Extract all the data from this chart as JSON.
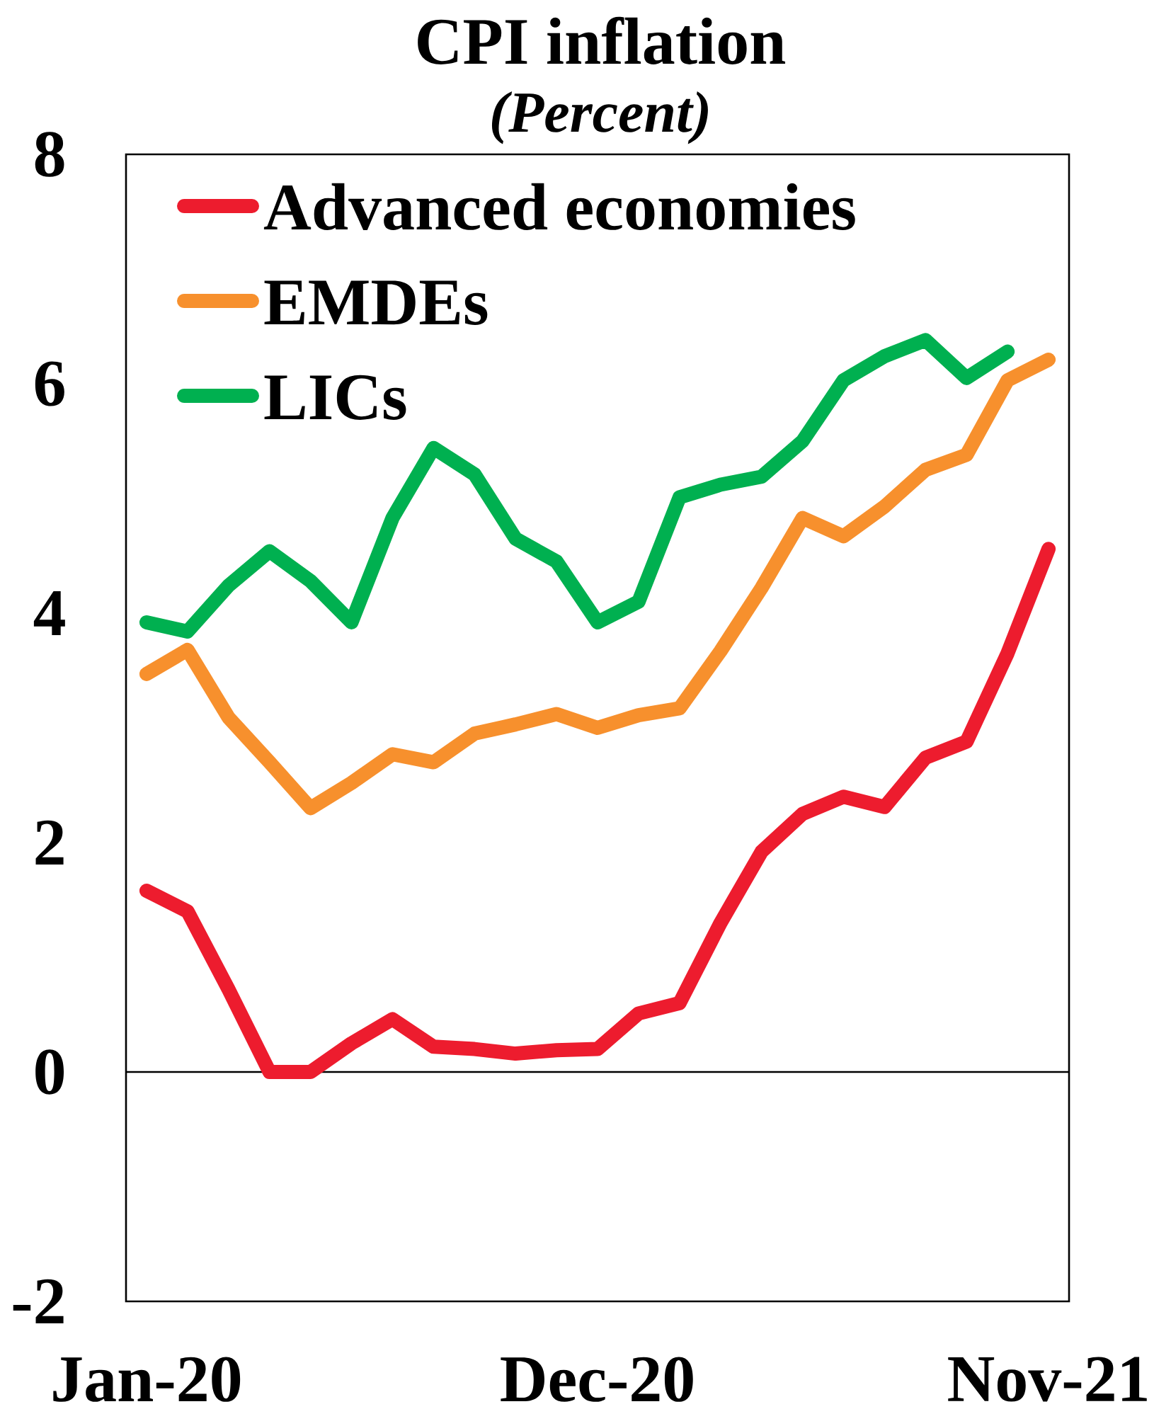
{
  "chart_data": {
    "type": "line",
    "title": "CPI inflation",
    "subtitle": "(Percent)",
    "categories": [
      "Jan-20",
      null,
      null,
      null,
      null,
      null,
      null,
      null,
      null,
      null,
      null,
      "Dec-20",
      null,
      null,
      null,
      null,
      null,
      null,
      null,
      null,
      null,
      null,
      "Nov-21"
    ],
    "series": [
      {
        "name": "Advanced economies",
        "color": "#ed1c2e",
        "values": [
          1.58,
          1.4,
          0.72,
          0.0,
          0.0,
          0.25,
          0.46,
          0.22,
          0.2,
          0.16,
          0.19,
          0.2,
          0.51,
          0.6,
          1.3,
          1.92,
          2.25,
          2.4,
          2.31,
          2.74,
          2.88,
          3.65,
          4.56
        ]
      },
      {
        "name": "EMDEs",
        "color": "#f7902d",
        "values": [
          3.47,
          3.68,
          3.09,
          2.7,
          2.3,
          2.52,
          2.77,
          2.7,
          2.95,
          3.03,
          3.12,
          3.0,
          3.11,
          3.17,
          3.67,
          4.22,
          4.83,
          4.67,
          4.93,
          5.25,
          5.38,
          6.03,
          6.21
        ]
      },
      {
        "name": "LICs",
        "color": "#00b050",
        "values": [
          3.92,
          3.84,
          4.24,
          4.54,
          4.28,
          3.92,
          4.83,
          5.44,
          5.21,
          4.65,
          4.45,
          3.92,
          4.1,
          5.01,
          5.12,
          5.19,
          5.5,
          6.03,
          6.24,
          6.38,
          6.05,
          6.28,
          null
        ]
      }
    ],
    "ylim": [
      -2,
      8
    ],
    "yticks": [
      -2,
      0,
      2,
      4,
      6,
      8
    ],
    "legend": "top left",
    "ref_lines": [
      {
        "axis": "y",
        "value": 0,
        "color": "#000000"
      }
    ]
  }
}
